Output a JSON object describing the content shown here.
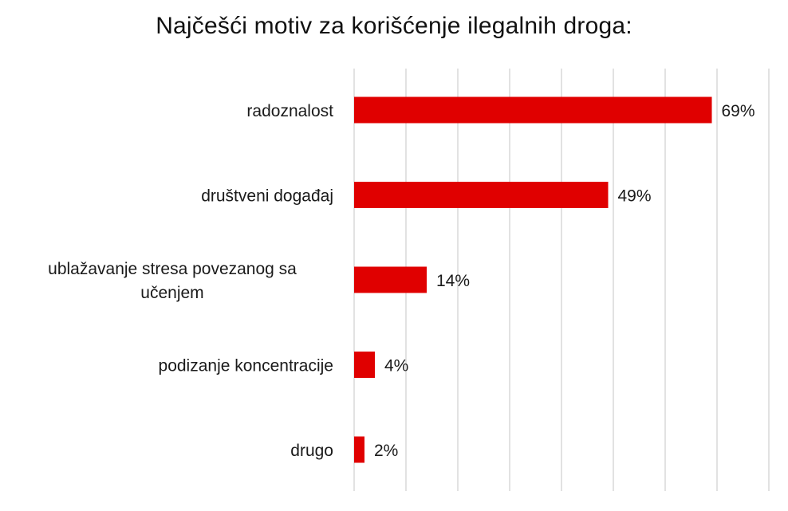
{
  "chart_data": {
    "type": "bar",
    "orientation": "horizontal",
    "title": "Najčešći motiv za korišćenje ilegalnih droga:",
    "categories": [
      "radoznalost",
      "društveni događaj",
      "ublažavanje stresa povezanog sa učenjem",
      "podizanje koncentracije",
      "drugo"
    ],
    "values": [
      69,
      49,
      14,
      4,
      2
    ],
    "data_labels": [
      "69%",
      "49%",
      "14%",
      "4%",
      "2%"
    ],
    "unit": "%",
    "xlim": [
      0,
      80
    ],
    "grid": true,
    "bar_color": "#e00000",
    "grid_color": "#d9d9d9"
  }
}
